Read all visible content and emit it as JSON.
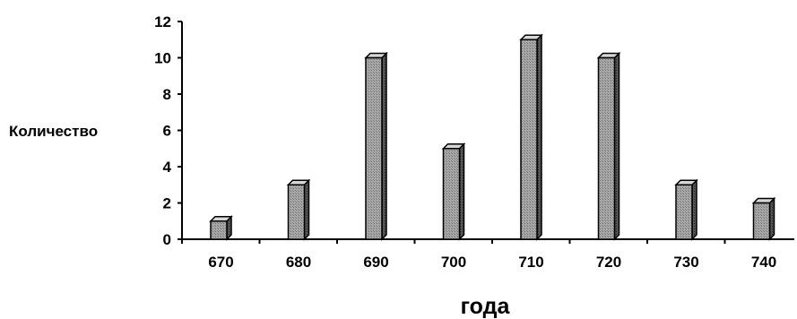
{
  "chart_data": {
    "type": "bar",
    "title": "",
    "xlabel": "года",
    "ylabel": "Количество",
    "categories": [
      "670",
      "680",
      "690",
      "700",
      "710",
      "720",
      "730",
      "740"
    ],
    "values": [
      1,
      3,
      10,
      5,
      11,
      10,
      3,
      2
    ],
    "yticks": [
      "0",
      "2",
      "4",
      "6",
      "8",
      "10",
      "12"
    ],
    "ylim": [
      0,
      12
    ],
    "grid": false,
    "legend": "none",
    "style": "3d-shaded",
    "colors": {
      "bar_face": "#9a9a9a",
      "bar_side": "#4a4a4a",
      "bar_top": "#d6d6d6",
      "axis": "#000000"
    }
  }
}
